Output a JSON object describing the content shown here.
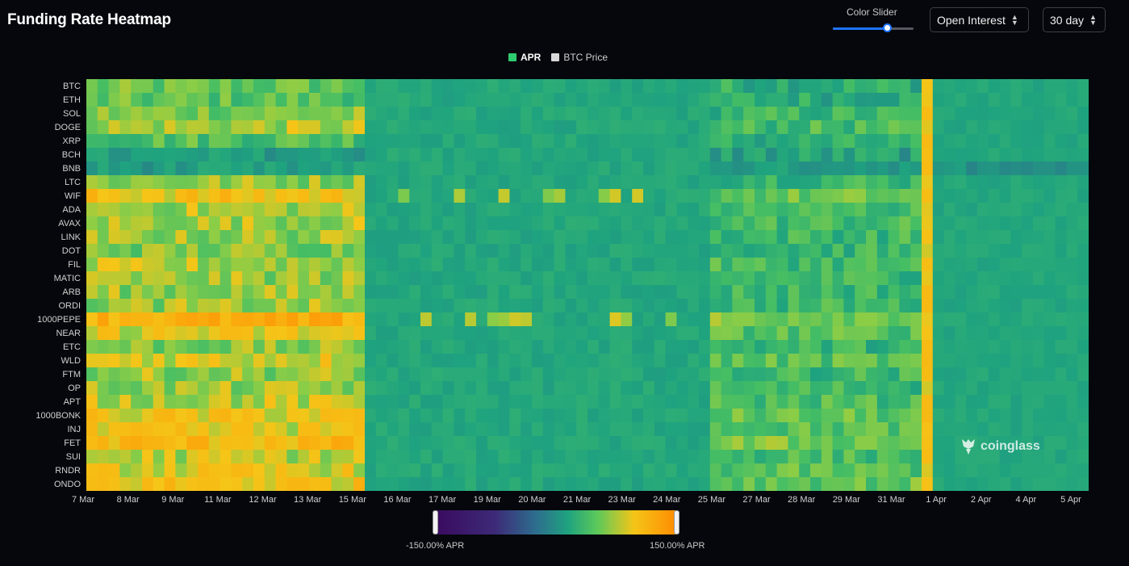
{
  "header": {
    "title": "Funding Rate Heatmap",
    "color_slider_label": "Color Slider",
    "color_slider_value": 0.68,
    "metric_select": "Open Interest",
    "range_select": "30 day"
  },
  "legend": [
    {
      "label": "APR",
      "color": "#2ecc71"
    },
    {
      "label": "BTC Price",
      "color": "#d9d9d9"
    }
  ],
  "color_scale": {
    "min_label": "-150.00% APR",
    "max_label": "150.00% APR",
    "min": -150,
    "max": 150
  },
  "watermark": "coinglass",
  "chart_data": {
    "type": "heatmap",
    "title": "Funding Rate Heatmap",
    "rows": [
      "BTC",
      "ETH",
      "SOL",
      "DOGE",
      "XRP",
      "BCH",
      "BNB",
      "LTC",
      "WIF",
      "ADA",
      "AVAX",
      "LINK",
      "DOT",
      "FIL",
      "MATIC",
      "ARB",
      "ORDI",
      "1000PEPE",
      "NEAR",
      "ETC",
      "WLD",
      "FTM",
      "OP",
      "APT",
      "1000BONK",
      "INJ",
      "FET",
      "SUI",
      "RNDR",
      "ONDO"
    ],
    "x_tick_labels": [
      "7 Mar",
      "8 Mar",
      "9 Mar",
      "11 Mar",
      "12 Mar",
      "13 Mar",
      "15 Mar",
      "16 Mar",
      "17 Mar",
      "19 Mar",
      "20 Mar",
      "21 Mar",
      "23 Mar",
      "24 Mar",
      "25 Mar",
      "27 Mar",
      "28 Mar",
      "29 Mar",
      "31 Mar",
      "1 Apr",
      "2 Apr",
      "4 Apr",
      "5 Apr"
    ],
    "columns_count": 90,
    "value_unit": "% APR",
    "zlim": [
      -150,
      150
    ],
    "periods": [
      {
        "from": "7 Mar",
        "to": "15 Mar",
        "typical_apr": 60
      },
      {
        "from": "16 Mar",
        "to": "24 Mar",
        "typical_apr": 10
      },
      {
        "from": "25 Mar",
        "to": "1 Apr",
        "typical_apr": 30
      },
      {
        "from": "1 Apr",
        "to": "5 Apr",
        "typical_apr": 8
      }
    ],
    "row_typical_apr": {
      "BTC": 25,
      "ETH": 22,
      "SOL": 35,
      "DOGE": 45,
      "XRP": 20,
      "BCH": 5,
      "BNB": 0,
      "LTC": 40,
      "WIF": 70,
      "ADA": 45,
      "AVAX": 45,
      "LINK": 40,
      "DOT": 35,
      "FIL": 45,
      "MATIC": 40,
      "ARB": 40,
      "ORDI": 40,
      "1000PEPE": 90,
      "NEAR": 60,
      "ETC": 35,
      "WLD": 60,
      "FTM": 40,
      "OP": 40,
      "APT": 50,
      "1000BONK": 65,
      "INJ": 60,
      "FET": 80,
      "SUI": 50,
      "RNDR": 60,
      "ONDO": 70
    }
  }
}
